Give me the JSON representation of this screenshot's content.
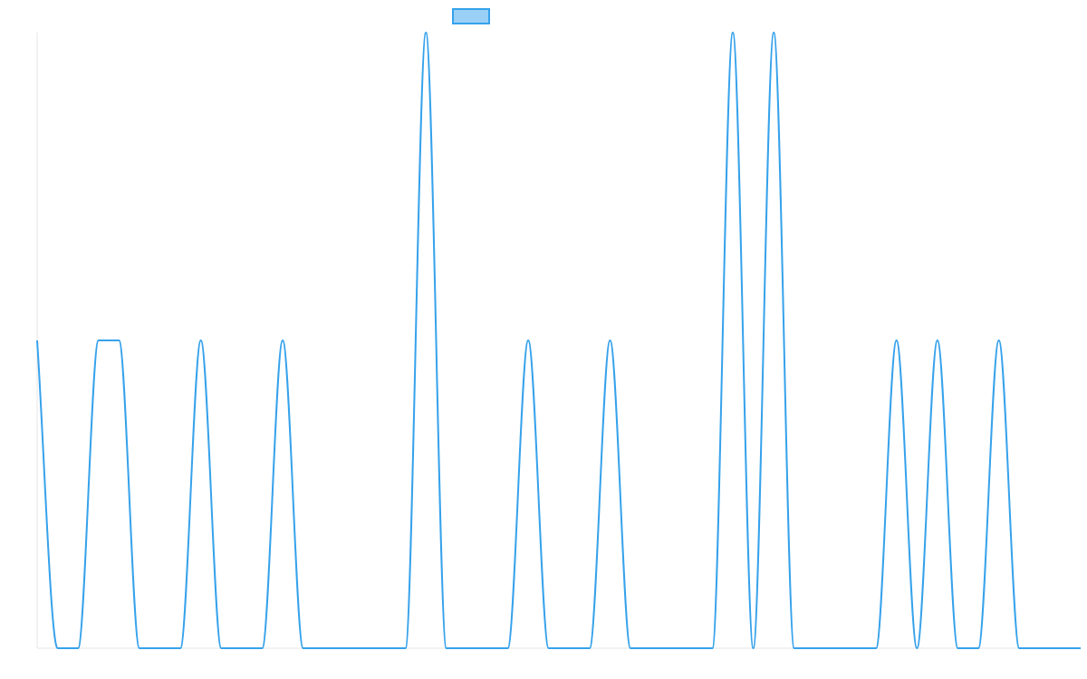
{
  "chart_data": {
    "type": "line",
    "title": "",
    "xlabel": "",
    "ylabel": "",
    "legend": {
      "position": "top-center",
      "entries": [
        {
          "name": "",
          "fill": "#9ad0f5",
          "stroke": "#36a2eb"
        }
      ]
    },
    "ylim": [
      0,
      2
    ],
    "x": [
      0,
      1,
      2,
      3,
      4,
      5,
      6,
      7,
      8,
      9,
      10,
      11,
      12,
      13,
      14,
      15,
      16,
      17,
      18,
      19,
      20,
      21,
      22,
      23,
      24,
      25,
      26,
      27,
      28,
      29,
      30,
      31,
      32,
      33,
      34,
      35,
      36,
      37,
      38,
      39,
      40,
      41,
      42,
      43,
      44,
      45,
      46,
      47,
      48,
      49,
      50,
      51
    ],
    "series": [
      {
        "values": [
          1,
          0,
          0,
          1,
          1,
          0,
          0,
          0,
          1,
          0,
          0,
          0,
          1,
          0,
          0,
          0,
          0,
          0,
          0,
          2,
          0,
          0,
          0,
          0,
          1,
          0,
          0,
          0,
          1,
          0,
          0,
          0,
          0,
          0,
          2,
          0,
          2,
          0,
          0,
          0,
          0,
          0,
          1,
          0,
          1,
          0,
          0,
          1,
          0,
          0,
          0,
          0
        ],
        "color": "#36a2eb"
      }
    ],
    "grid": false,
    "axes": {
      "x_line": true,
      "y_line": true
    }
  }
}
